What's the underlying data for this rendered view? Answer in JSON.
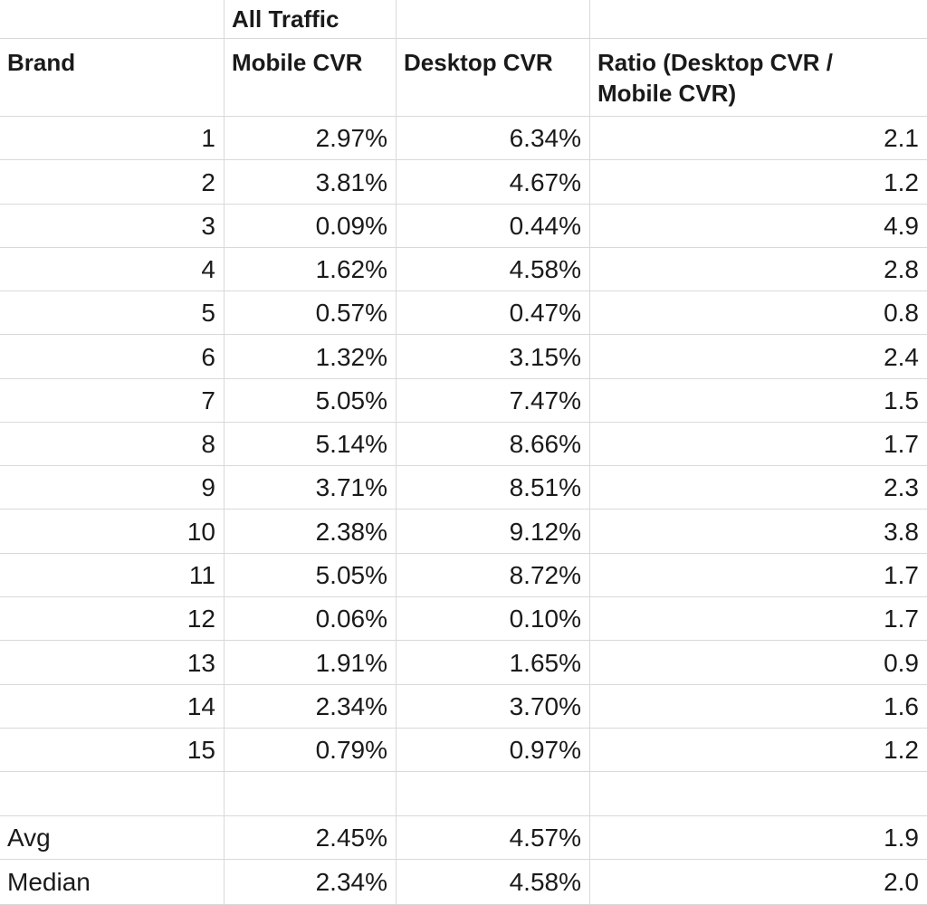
{
  "header": {
    "group_label": "All Traffic",
    "col_brand": "Brand",
    "col_mobile": "Mobile CVR",
    "col_desktop": "Desktop CVR",
    "col_ratio": "Ratio (Desktop CVR / Mobile CVR)"
  },
  "rows": [
    {
      "brand": "1",
      "mobile": "2.97%",
      "desktop": "6.34%",
      "ratio": "2.1"
    },
    {
      "brand": "2",
      "mobile": "3.81%",
      "desktop": "4.67%",
      "ratio": "1.2"
    },
    {
      "brand": "3",
      "mobile": "0.09%",
      "desktop": "0.44%",
      "ratio": "4.9"
    },
    {
      "brand": "4",
      "mobile": "1.62%",
      "desktop": "4.58%",
      "ratio": "2.8"
    },
    {
      "brand": "5",
      "mobile": "0.57%",
      "desktop": "0.47%",
      "ratio": "0.8"
    },
    {
      "brand": "6",
      "mobile": "1.32%",
      "desktop": "3.15%",
      "ratio": "2.4"
    },
    {
      "brand": "7",
      "mobile": "5.05%",
      "desktop": "7.47%",
      "ratio": "1.5"
    },
    {
      "brand": "8",
      "mobile": "5.14%",
      "desktop": "8.66%",
      "ratio": "1.7"
    },
    {
      "brand": "9",
      "mobile": "3.71%",
      "desktop": "8.51%",
      "ratio": "2.3"
    },
    {
      "brand": "10",
      "mobile": "2.38%",
      "desktop": "9.12%",
      "ratio": "3.8"
    },
    {
      "brand": "11",
      "mobile": "5.05%",
      "desktop": "8.72%",
      "ratio": "1.7"
    },
    {
      "brand": "12",
      "mobile": "0.06%",
      "desktop": "0.10%",
      "ratio": "1.7"
    },
    {
      "brand": "13",
      "mobile": "1.91%",
      "desktop": "1.65%",
      "ratio": "0.9"
    },
    {
      "brand": "14",
      "mobile": "2.34%",
      "desktop": "3.70%",
      "ratio": "1.6"
    },
    {
      "brand": "15",
      "mobile": "0.79%",
      "desktop": "0.97%",
      "ratio": "1.2"
    }
  ],
  "summary": [
    {
      "label": "Avg",
      "mobile": "2.45%",
      "desktop": "4.57%",
      "ratio": "1.9"
    },
    {
      "label": "Median",
      "mobile": "2.34%",
      "desktop": "4.58%",
      "ratio": "2.0"
    }
  ]
}
